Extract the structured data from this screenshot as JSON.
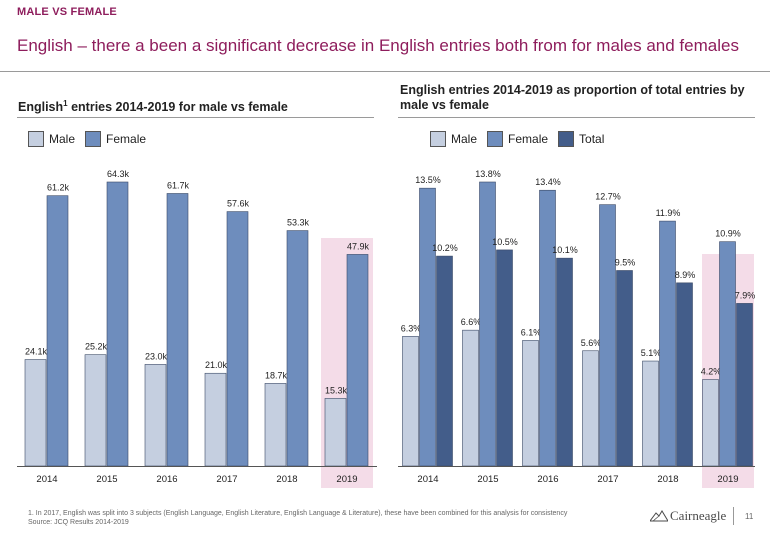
{
  "header": {
    "kicker": "MALE VS FEMALE",
    "title": "English – there a been a significant decrease in English entries both from for males and females"
  },
  "colors": {
    "male": "#c5cfe0",
    "female": "#6e8dbd",
    "total": "#435d8a",
    "highlight": "#f4dce8",
    "accent": "#8e1d5c"
  },
  "chart_data": [
    {
      "type": "bar",
      "title": "English¹ entries 2014-2019 for male vs female",
      "categories": [
        "2014",
        "2015",
        "2016",
        "2017",
        "2018",
        "2019"
      ],
      "series": [
        {
          "name": "Male",
          "values": [
            24.1,
            25.2,
            23.0,
            21.0,
            18.7,
            15.3
          ],
          "labels": [
            "24.1k",
            "25.2k",
            "23.0k",
            "21.0k",
            "18.7k",
            "15.3k"
          ]
        },
        {
          "name": "Female",
          "values": [
            61.2,
            64.3,
            61.7,
            57.6,
            53.3,
            47.9
          ],
          "labels": [
            "61.2k",
            "64.3k",
            "61.7k",
            "57.6k",
            "53.3k",
            "47.9k"
          ]
        }
      ],
      "ylim": [
        0,
        64.3
      ],
      "highlight_category": "2019",
      "legend": "top-left"
    },
    {
      "type": "bar",
      "title": "English entries 2014-2019 as proportion of total entries by male vs female",
      "categories": [
        "2014",
        "2015",
        "2016",
        "2017",
        "2018",
        "2019"
      ],
      "series": [
        {
          "name": "Male",
          "values": [
            6.3,
            6.6,
            6.1,
            5.6,
            5.1,
            4.2
          ],
          "labels": [
            "6.3%",
            "6.6%",
            "6.1%",
            "5.6%",
            "5.1%",
            "4.2%"
          ]
        },
        {
          "name": "Female",
          "values": [
            13.5,
            13.8,
            13.4,
            12.7,
            11.9,
            10.9
          ],
          "labels": [
            "13.5%",
            "13.8%",
            "13.4%",
            "12.7%",
            "11.9%",
            "10.9%"
          ]
        },
        {
          "name": "Total",
          "values": [
            10.2,
            10.5,
            10.1,
            9.5,
            8.9,
            7.9
          ],
          "labels": [
            "10.2%",
            "10.5%",
            "10.1%",
            "9.5%",
            "8.9%",
            "7.9%"
          ]
        }
      ],
      "ylim": [
        0,
        13.8
      ],
      "highlight_category": "2019",
      "legend": "top-left"
    }
  ],
  "footnote": {
    "line1": "1.  In 2017, English was split into 3 subjects (English Language, English Literature, English Language & Literature), these have been combined for this analysis for consistency",
    "line2": "Source: JCQ Results 2014-2019"
  },
  "brand": {
    "name": "Cairneagle",
    "page": "11"
  }
}
